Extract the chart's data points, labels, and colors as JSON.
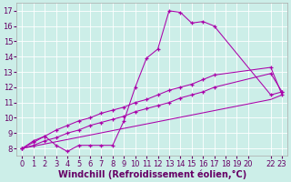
{
  "background_color": "#cceee8",
  "line_color": "#aa00aa",
  "xlabel": "Windchill (Refroidissement éolien,°C)",
  "xlabel_fontsize": 7,
  "tick_fontsize": 6,
  "xlim": [
    -0.5,
    23.5
  ],
  "ylim": [
    7.5,
    17.5
  ],
  "yticks": [
    8,
    9,
    10,
    11,
    12,
    13,
    14,
    15,
    16,
    17
  ],
  "xtick_positions": [
    0,
    1,
    2,
    3,
    4,
    5,
    6,
    7,
    8,
    9,
    10,
    11,
    12,
    13,
    14,
    15,
    16,
    17,
    18,
    19,
    20,
    22,
    23
  ],
  "xtick_labels": [
    "0",
    "1",
    "2",
    "3",
    "4",
    "5",
    "6",
    "7",
    "8",
    "9",
    "10",
    "11",
    "12",
    "13",
    "14",
    "15",
    "16",
    "17",
    "18",
    "19",
    "20",
    "22",
    "23"
  ],
  "line1_x": [
    0,
    1,
    2,
    3,
    4,
    5,
    6,
    7,
    8,
    9,
    10,
    11,
    12,
    13,
    14,
    15,
    16,
    17,
    22,
    23
  ],
  "line1_y": [
    8.0,
    8.5,
    8.8,
    8.2,
    7.8,
    8.2,
    8.2,
    8.2,
    8.2,
    9.8,
    12.0,
    13.9,
    14.5,
    17.0,
    16.9,
    16.2,
    16.3,
    16.0,
    11.5,
    11.7
  ],
  "line2_x": [
    0,
    1,
    2,
    3,
    4,
    5,
    6,
    7,
    8,
    9,
    10,
    11,
    12,
    13,
    14,
    15,
    16,
    17,
    22,
    23
  ],
  "line2_y": [
    8.0,
    8.4,
    8.8,
    9.2,
    9.5,
    9.8,
    10.0,
    10.3,
    10.5,
    10.7,
    11.0,
    11.2,
    11.5,
    11.8,
    12.0,
    12.2,
    12.5,
    12.8,
    13.3,
    11.5
  ],
  "line3_x": [
    0,
    22,
    23
  ],
  "line3_y": [
    8.0,
    11.2,
    11.5
  ],
  "line4_x": [
    0,
    1,
    2,
    3,
    4,
    5,
    6,
    7,
    8,
    9,
    10,
    11,
    12,
    13,
    14,
    15,
    16,
    17,
    22,
    23
  ],
  "line4_y": [
    8.0,
    8.2,
    8.5,
    8.7,
    9.0,
    9.2,
    9.5,
    9.7,
    9.9,
    10.1,
    10.4,
    10.6,
    10.8,
    11.0,
    11.3,
    11.5,
    11.7,
    12.0,
    12.9,
    11.7
  ]
}
